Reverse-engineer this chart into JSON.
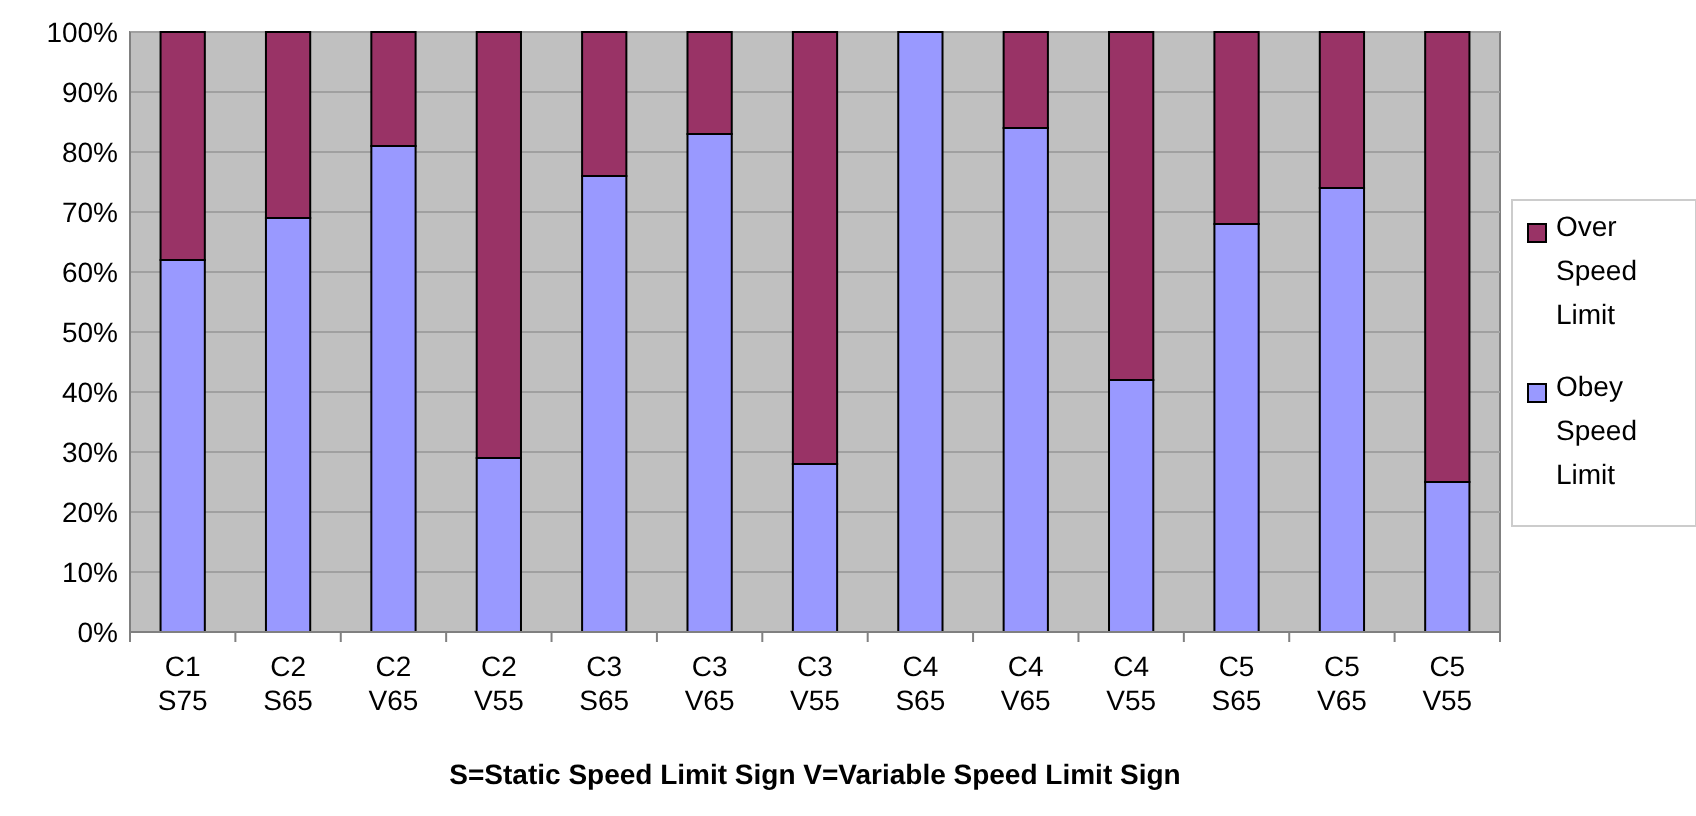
{
  "chart_data": {
    "type": "bar",
    "stacked": true,
    "xlabel": "S=Static Speed Limit Sign V=Variable Speed Limit Sign",
    "categories": [
      "C1 S75",
      "C2 S65",
      "C2 V65",
      "C2 V55",
      "C3 S65",
      "C3 V65",
      "C3 V55",
      "C4 S65",
      "C4 V65",
      "C4 V55",
      "C5 S65",
      "C5 V65",
      "C5 V55"
    ],
    "series": [
      {
        "name": "Obey Speed Limit",
        "color": "#9999ff",
        "values": [
          62,
          69,
          81,
          29,
          76,
          83,
          28,
          100,
          84,
          42,
          68,
          74,
          25
        ]
      },
      {
        "name": "Over Speed Limit",
        "color": "#993366",
        "values": [
          38,
          31,
          19,
          71,
          24,
          17,
          72,
          0,
          16,
          58,
          32,
          26,
          75
        ]
      }
    ],
    "ylim": [
      0,
      100
    ],
    "yticks": [
      {
        "value": 0,
        "label": "0%"
      },
      {
        "value": 10,
        "label": "10%"
      },
      {
        "value": 20,
        "label": "20%"
      },
      {
        "value": 30,
        "label": "30%"
      },
      {
        "value": 40,
        "label": "40%"
      },
      {
        "value": 50,
        "label": "50%"
      },
      {
        "value": 60,
        "label": "60%"
      },
      {
        "value": 70,
        "label": "70%"
      },
      {
        "value": 80,
        "label": "80%"
      },
      {
        "value": 90,
        "label": "90%"
      },
      {
        "value": 100,
        "label": "100%"
      }
    ],
    "grid": "y",
    "legend": "right"
  }
}
